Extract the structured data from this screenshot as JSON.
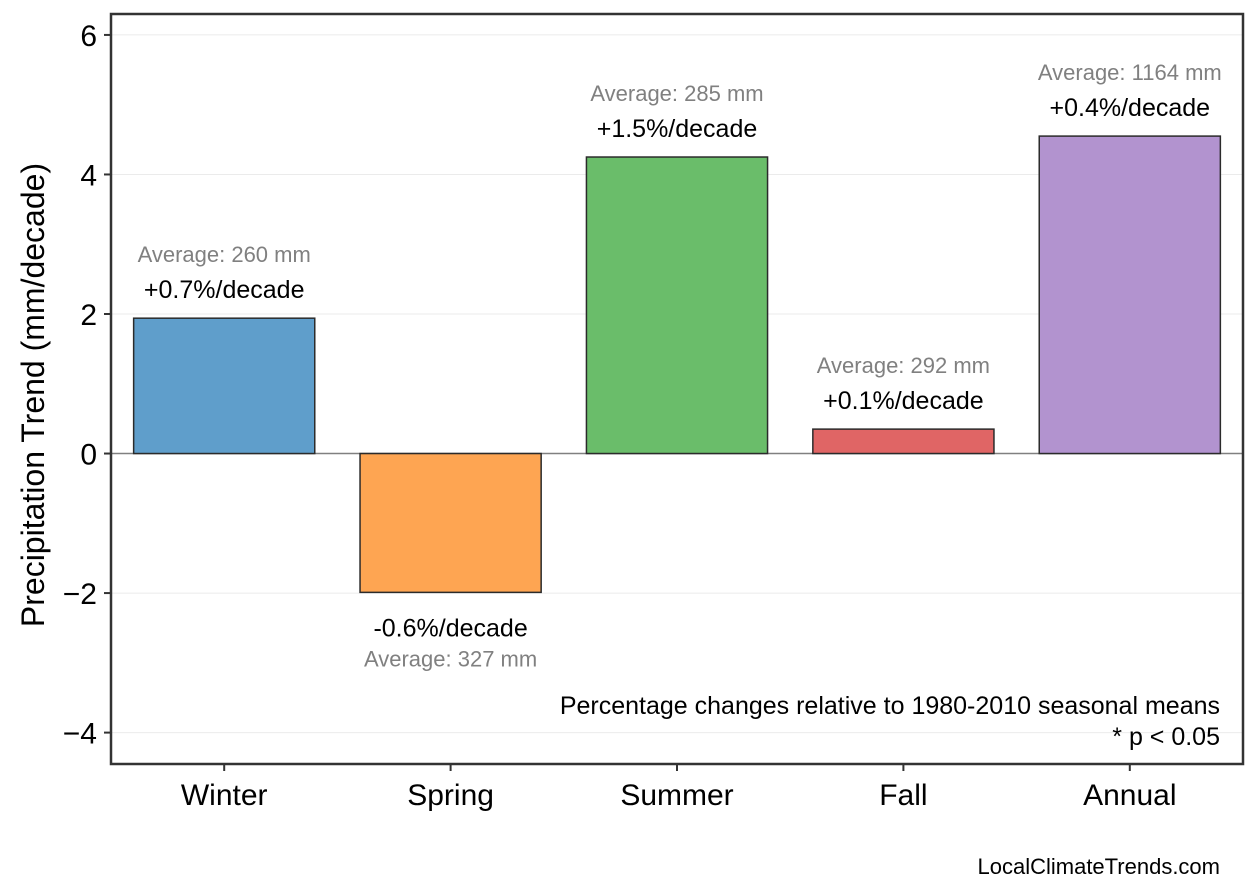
{
  "chart_data": {
    "type": "bar",
    "title": "",
    "xlabel": "",
    "ylabel": "Precipitation Trend (mm/decade)",
    "ylim": [
      -4.45,
      6.3
    ],
    "yticks": [
      -4,
      -2,
      0,
      2,
      4,
      6
    ],
    "ytick_labels": [
      "−4",
      "−2",
      "0",
      "2",
      "4",
      "6"
    ],
    "grid": true,
    "categories": [
      "Winter",
      "Spring",
      "Summer",
      "Fall",
      "Annual"
    ],
    "values": [
      1.94,
      -1.99,
      4.25,
      0.35,
      4.55
    ],
    "colors": [
      "#5f9ecb",
      "#fea552",
      "#6abd6a",
      "#e06565",
      "#b293cf"
    ],
    "percent_labels": [
      "+0.7%/decade",
      "-0.6%/decade",
      "+1.5%/decade",
      "+0.1%/decade",
      "+0.4%/decade"
    ],
    "average_labels": [
      "Average: 260 mm",
      "Average: 327 mm",
      "Average: 285 mm",
      "Average: 292 mm",
      "Average: 1164 mm"
    ],
    "note_lines": [
      "Percentage changes relative to 1980-2010 seasonal means",
      "* p < 0.05"
    ],
    "credit": "LocalClimateTrends.com"
  }
}
